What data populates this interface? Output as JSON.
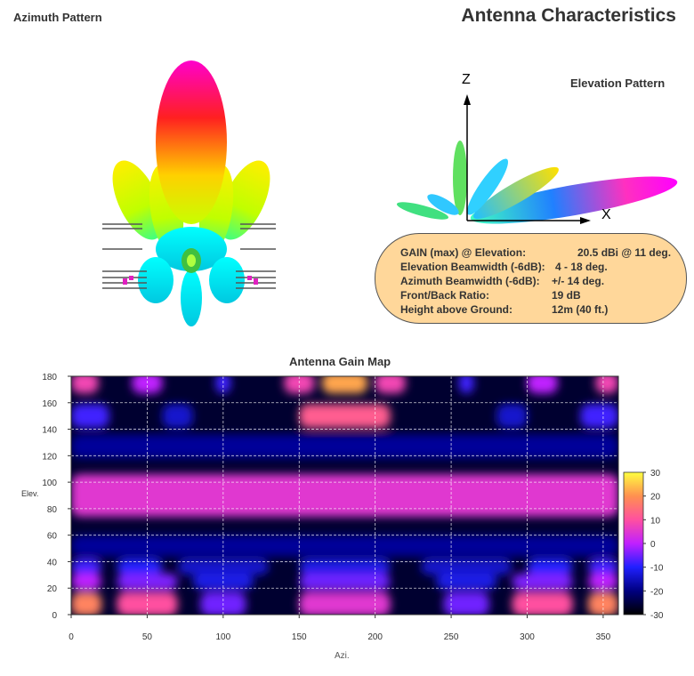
{
  "header": {
    "title": "Antenna Characteristics",
    "azimuth_title": "Azimuth Pattern",
    "elevation_title": "Elevation Pattern"
  },
  "elevation_axes": {
    "z_label": "Z",
    "x_label": "X"
  },
  "specs": [
    {
      "label": "GAIN (max) @ Elevation:",
      "value": "20.5 dBi @ 11 deg."
    },
    {
      "label": "Elevation Beamwidth (-6dB):",
      "value": "4 - 18 deg."
    },
    {
      "label": "Azimuth Beamwidth (-6dB):",
      "value": "+/- 14 deg."
    },
    {
      "label": "Front/Back Ratio:",
      "value": "19 dB"
    },
    {
      "label": "Height above Ground:",
      "value": "12m (40 ft.)"
    }
  ],
  "chart_data": {
    "type": "heatmap",
    "title": "Antenna Gain Map",
    "xlabel": "Azi.",
    "ylabel": "Elev.",
    "xlim": [
      0,
      360
    ],
    "ylim": [
      0,
      180
    ],
    "xticks": [
      0,
      50,
      100,
      150,
      200,
      250,
      300,
      350
    ],
    "yticks": [
      0,
      20,
      40,
      60,
      80,
      100,
      120,
      140,
      160,
      180
    ],
    "colorbar": {
      "min": -30,
      "max": 30,
      "ticks": [
        30,
        20,
        10,
        0,
        -10,
        -20,
        -30
      ]
    },
    "grid": true,
    "rows": [
      {
        "elev": 175,
        "bands": [
          [
            0,
            18,
            8
          ],
          [
            40,
            60,
            0
          ],
          [
            95,
            105,
            -8
          ],
          [
            140,
            160,
            8
          ],
          [
            165,
            195,
            22
          ],
          [
            200,
            220,
            8
          ],
          [
            255,
            265,
            -8
          ],
          [
            300,
            320,
            0
          ],
          [
            345,
            360,
            8
          ]
        ]
      },
      {
        "elev": 150,
        "bands": [
          [
            0,
            25,
            -8
          ],
          [
            60,
            80,
            -14
          ],
          [
            150,
            210,
            12
          ],
          [
            280,
            300,
            -14
          ],
          [
            335,
            360,
            -8
          ]
        ]
      },
      {
        "elev": 127,
        "bands": [
          [
            0,
            360,
            -18
          ]
        ]
      },
      {
        "elev": 90,
        "bands": [
          [
            0,
            360,
            5
          ]
        ]
      },
      {
        "elev": 52,
        "bands": [
          [
            0,
            360,
            -18
          ]
        ]
      },
      {
        "elev": 36,
        "bands": [
          [
            0,
            20,
            -8
          ],
          [
            30,
            60,
            -10
          ],
          [
            70,
            130,
            -14
          ],
          [
            150,
            210,
            -12
          ],
          [
            230,
            290,
            -14
          ],
          [
            300,
            330,
            -10
          ],
          [
            340,
            360,
            -8
          ]
        ]
      },
      {
        "elev": 25,
        "bands": [
          [
            0,
            20,
            0
          ],
          [
            30,
            70,
            -4
          ],
          [
            80,
            120,
            -12
          ],
          [
            150,
            210,
            -5
          ],
          [
            240,
            280,
            -12
          ],
          [
            290,
            330,
            -4
          ],
          [
            340,
            360,
            0
          ]
        ]
      },
      {
        "elev": 8,
        "bands": [
          [
            0,
            20,
            18
          ],
          [
            30,
            70,
            10
          ],
          [
            85,
            115,
            -5
          ],
          [
            150,
            210,
            5
          ],
          [
            245,
            275,
            -5
          ],
          [
            290,
            330,
            10
          ],
          [
            340,
            360,
            18
          ]
        ]
      }
    ]
  }
}
